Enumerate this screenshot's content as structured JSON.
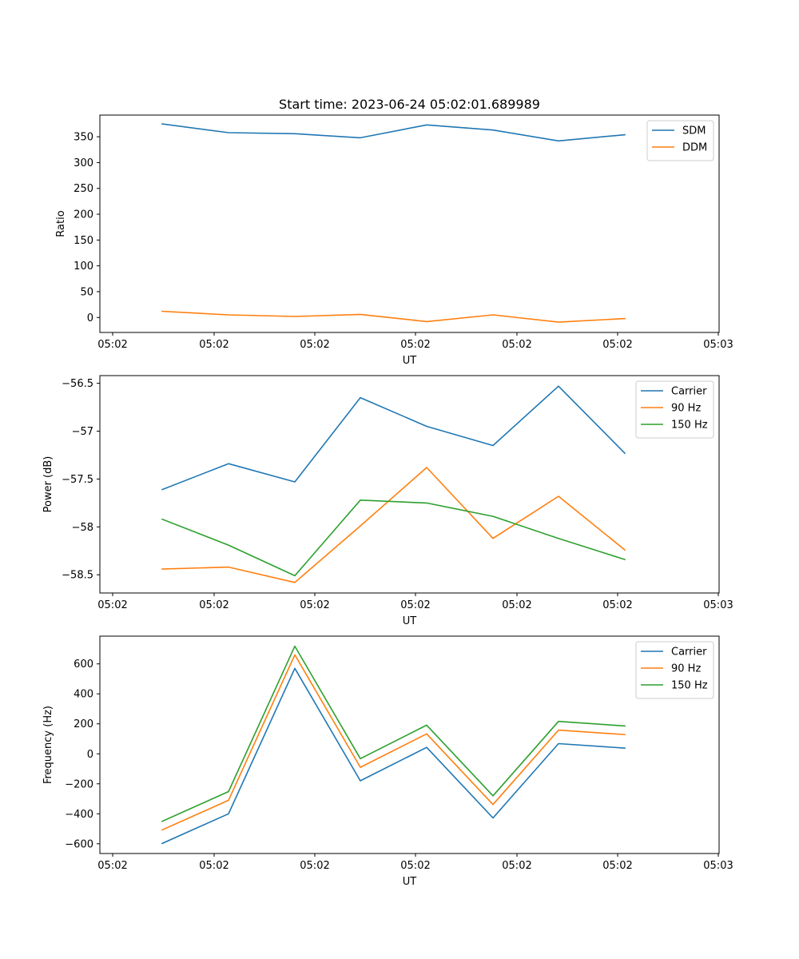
{
  "figure_title": "Start time: 2023-06-24 05:02:01.689989",
  "colors": {
    "blue": "#1f77b4",
    "orange": "#ff7f0e",
    "green": "#2ca02c",
    "frame": "#000000"
  },
  "chart_data": [
    {
      "type": "line",
      "title": "Start time: 2023-06-24 05:02:01.689989",
      "xlabel": "UT",
      "ylabel": "Ratio",
      "grid": false,
      "legend_position": "top-right",
      "x_tick_labels": [
        "05:02",
        "05:02",
        "05:02",
        "05:02",
        "05:02",
        "05:02",
        "05:03"
      ],
      "ylim": [
        -29,
        392
      ],
      "y_ticks": [
        0,
        50,
        100,
        150,
        200,
        250,
        300,
        350
      ],
      "series": [
        {
          "name": "SDM",
          "color": "#1f77b4",
          "values": [
            375,
            358,
            356,
            348,
            373,
            363,
            342,
            354
          ]
        },
        {
          "name": "DDM",
          "color": "#ff7f0e",
          "values": [
            12,
            5,
            2,
            6,
            -8,
            5,
            -9,
            -2
          ]
        }
      ]
    },
    {
      "type": "line",
      "title": "",
      "xlabel": "UT",
      "ylabel": "Power (dB)",
      "grid": false,
      "legend_position": "top-right",
      "x_tick_labels": [
        "05:02",
        "05:02",
        "05:02",
        "05:02",
        "05:02",
        "05:02",
        "05:03"
      ],
      "ylim": [
        -58.69,
        -56.42
      ],
      "y_ticks": [
        -56.5,
        -57.0,
        -57.5,
        -58.0,
        -58.5
      ],
      "series": [
        {
          "name": "Carrier",
          "color": "#1f77b4",
          "values": [
            -57.61,
            -57.34,
            -57.53,
            -56.65,
            -56.95,
            -57.15,
            -56.53,
            -57.23
          ]
        },
        {
          "name": "90 Hz",
          "color": "#ff7f0e",
          "values": [
            -58.44,
            -58.42,
            -58.58,
            -57.99,
            -57.38,
            -58.12,
            -57.68,
            -58.24
          ]
        },
        {
          "name": "150 Hz",
          "color": "#2ca02c",
          "values": [
            -57.92,
            -58.19,
            -58.51,
            -57.72,
            -57.75,
            -57.89,
            -58.12,
            -58.34
          ]
        }
      ]
    },
    {
      "type": "line",
      "title": "",
      "xlabel": "UT",
      "ylabel": "Frequency (Hz)",
      "grid": false,
      "legend_position": "top-right",
      "x_tick_labels": [
        "05:02",
        "05:02",
        "05:02",
        "05:02",
        "05:02",
        "05:02",
        "05:03"
      ],
      "ylim": [
        -665,
        785
      ],
      "y_ticks": [
        -600,
        -400,
        -200,
        0,
        200,
        400,
        600
      ],
      "series": [
        {
          "name": "Carrier",
          "color": "#1f77b4",
          "values": [
            -598,
            -400,
            570,
            -180,
            43,
            -428,
            68,
            38
          ]
        },
        {
          "name": "90 Hz",
          "color": "#ff7f0e",
          "values": [
            -508,
            -310,
            660,
            -90,
            133,
            -338,
            158,
            128
          ]
        },
        {
          "name": "150 Hz",
          "color": "#2ca02c",
          "values": [
            -450,
            -252,
            718,
            -32,
            191,
            -280,
            216,
            186
          ]
        }
      ]
    }
  ]
}
